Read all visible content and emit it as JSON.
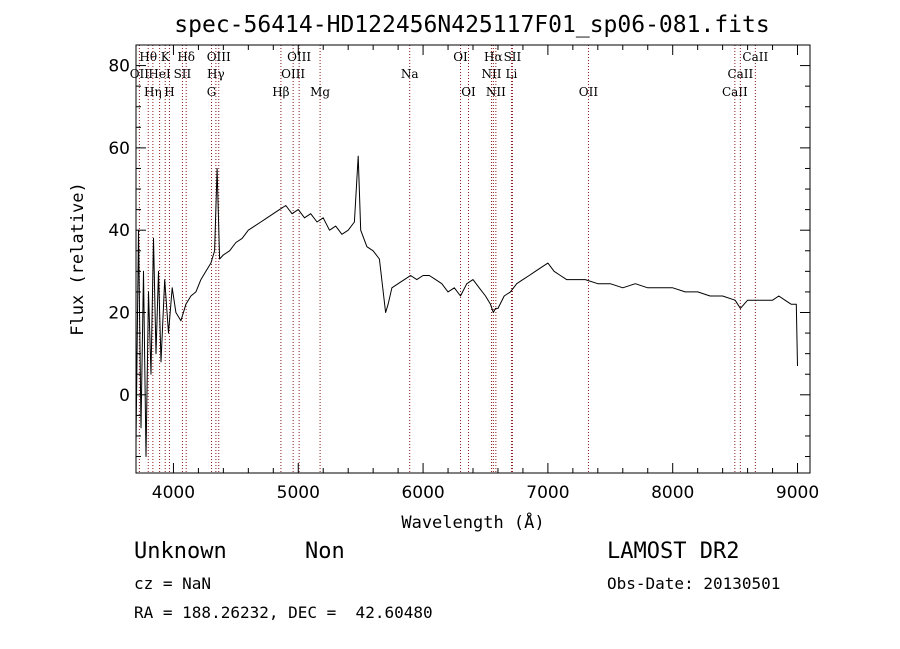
{
  "chart_data": {
    "type": "line",
    "title": "spec-56414-HD122456N425117F01_sp06-081.fits",
    "xlabel": "Wavelength (Å)",
    "ylabel": "Flux (relative)",
    "xlim": [
      3700,
      9100
    ],
    "ylim": [
      -19,
      85
    ],
    "xticks": [
      4000,
      5000,
      6000,
      7000,
      8000,
      9000
    ],
    "yticks": [
      0,
      20,
      40,
      60,
      80
    ],
    "grid": false,
    "series": [
      {
        "x": [
          3700,
          3720,
          3740,
          3760,
          3780,
          3800,
          3820,
          3840,
          3860,
          3880,
          3900,
          3930,
          3960,
          3990,
          4020,
          4060,
          4100,
          4140,
          4180,
          4220,
          4260,
          4300,
          4330,
          4350,
          4370,
          4400,
          4450,
          4500,
          4550,
          4600,
          4650,
          4700,
          4750,
          4800,
          4850,
          4900,
          4950,
          5000,
          5050,
          5100,
          5150,
          5200,
          5250,
          5300,
          5350,
          5400,
          5450,
          5480,
          5500,
          5550,
          5600,
          5650,
          5700,
          5720,
          5750,
          5800,
          5850,
          5900,
          5950,
          6000,
          6050,
          6100,
          6150,
          6200,
          6250,
          6300,
          6350,
          6400,
          6450,
          6500,
          6540,
          6563,
          6580,
          6600,
          6650,
          6700,
          6750,
          6800,
          6850,
          6900,
          6950,
          7000,
          7050,
          7100,
          7150,
          7200,
          7300,
          7400,
          7500,
          7600,
          7700,
          7800,
          7900,
          8000,
          8100,
          8200,
          8300,
          8400,
          8500,
          8542,
          8600,
          8700,
          8800,
          8850,
          8900,
          8950,
          8990,
          9000
        ],
        "y": [
          -12,
          40,
          -8,
          30,
          -15,
          25,
          5,
          38,
          10,
          30,
          8,
          28,
          15,
          26,
          20,
          18,
          22,
          24,
          25,
          28,
          30,
          32,
          35,
          55,
          33,
          34,
          35,
          37,
          38,
          40,
          41,
          42,
          43,
          44,
          45,
          46,
          44,
          45,
          43,
          44,
          42,
          43,
          40,
          41,
          39,
          40,
          42,
          58,
          40,
          36,
          35,
          33,
          20,
          22,
          26,
          27,
          28,
          29,
          28,
          29,
          29,
          28,
          27,
          25,
          26,
          24,
          27,
          28,
          26,
          24,
          22,
          20,
          21,
          21,
          24,
          25,
          27,
          28,
          29,
          30,
          31,
          32,
          30,
          29,
          28,
          28,
          28,
          27,
          27,
          26,
          27,
          26,
          26,
          26,
          25,
          25,
          24,
          24,
          23,
          21,
          23,
          23,
          23,
          24,
          23,
          22,
          22,
          7
        ]
      }
    ],
    "spectral_lines": [
      {
        "name": "OII",
        "wl": 3727,
        "row": 2
      },
      {
        "name": "Hθ",
        "wl": 3798,
        "row": 1
      },
      {
        "name": "Hη",
        "wl": 3835,
        "row": 3
      },
      {
        "name": "HeI",
        "wl": 3889,
        "row": 2
      },
      {
        "name": "K",
        "wl": 3934,
        "row": 1
      },
      {
        "name": "H",
        "wl": 3968,
        "row": 3
      },
      {
        "name": "SII",
        "wl": 4072,
        "row": 2
      },
      {
        "name": "Hδ",
        "wl": 4102,
        "row": 1
      },
      {
        "name": "G",
        "wl": 4305,
        "row": 3
      },
      {
        "name": "OIII",
        "wl": 4363,
        "row": 1
      },
      {
        "name": "Hγ",
        "wl": 4340,
        "row": 2
      },
      {
        "name": "Hβ",
        "wl": 4861,
        "row": 3
      },
      {
        "name": "OIII",
        "wl": 4959,
        "row": 2
      },
      {
        "name": "OIII",
        "wl": 5007,
        "row": 1
      },
      {
        "name": "Mg",
        "wl": 5175,
        "row": 3
      },
      {
        "name": "Na",
        "wl": 5893,
        "row": 2
      },
      {
        "name": "OI",
        "wl": 6300,
        "row": 1
      },
      {
        "name": "OI",
        "wl": 6364,
        "row": 3
      },
      {
        "name": "NII",
        "wl": 6548,
        "row": 2
      },
      {
        "name": "Hα",
        "wl": 6563,
        "row": 1
      },
      {
        "name": "NII",
        "wl": 6583,
        "row": 3
      },
      {
        "name": "SII",
        "wl": 6716,
        "row": 1
      },
      {
        "name": "Li",
        "wl": 6708,
        "row": 2
      },
      {
        "name": "OII",
        "wl": 7325,
        "row": 3
      },
      {
        "name": "CaII",
        "wl": 8498,
        "row": 3
      },
      {
        "name": "CaII",
        "wl": 8542,
        "row": 2
      },
      {
        "name": "CaII",
        "wl": 8662,
        "row": 1
      }
    ],
    "line_color": "#000000",
    "marker_color": "#8b1a1a"
  },
  "info": {
    "object_class": "Unknown",
    "object_subclass": "Non",
    "survey": "LAMOST DR2",
    "cz": "cz = NaN",
    "obs_date": "Obs-Date: 20130501",
    "coords": "RA = 188.26232, DEC =  42.60480"
  }
}
